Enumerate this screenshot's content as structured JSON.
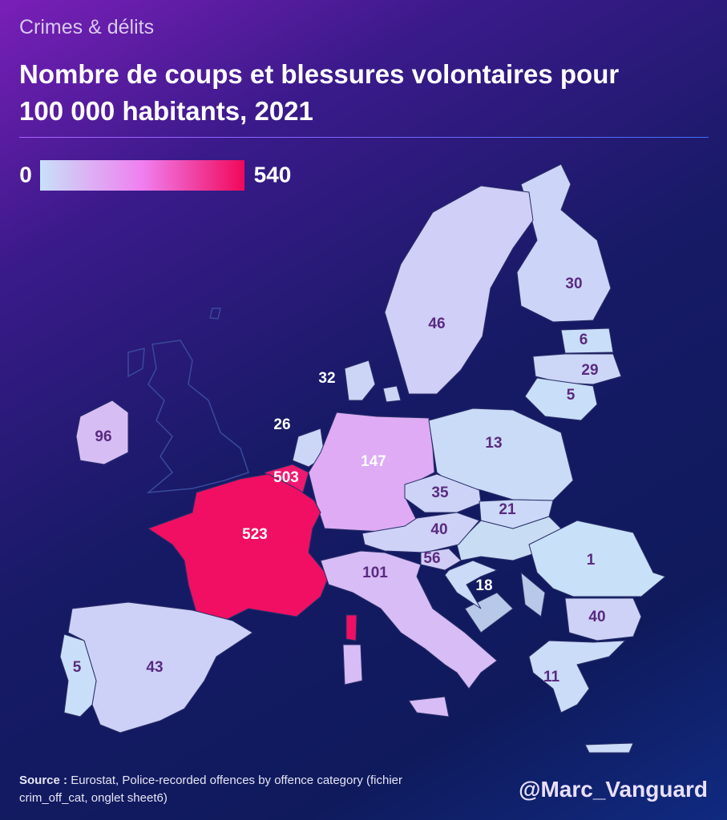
{
  "chart_data": {
    "type": "choropleth",
    "subtitle": "Crimes & délits",
    "title": "Nombre de coups et blessures volontaires pour 100 000 habitants, 2021",
    "clim": [
      0,
      540
    ],
    "colors": [
      "#c8e0f8",
      "#f07ff0",
      "#f0085a"
    ],
    "values": [
      30,
      46,
      6,
      29,
      5,
      32,
      26,
      96,
      147,
      503,
      523,
      13,
      35,
      21,
      40,
      56,
      18,
      101,
      1,
      40,
      11,
      43,
      5
    ],
    "source_label": "Source :",
    "source": "Eurostat, Police-recorded offences by offence category (fichier crim_off_cat, onglet sheet6)",
    "credit": "@Marc_Vanguard"
  }
}
